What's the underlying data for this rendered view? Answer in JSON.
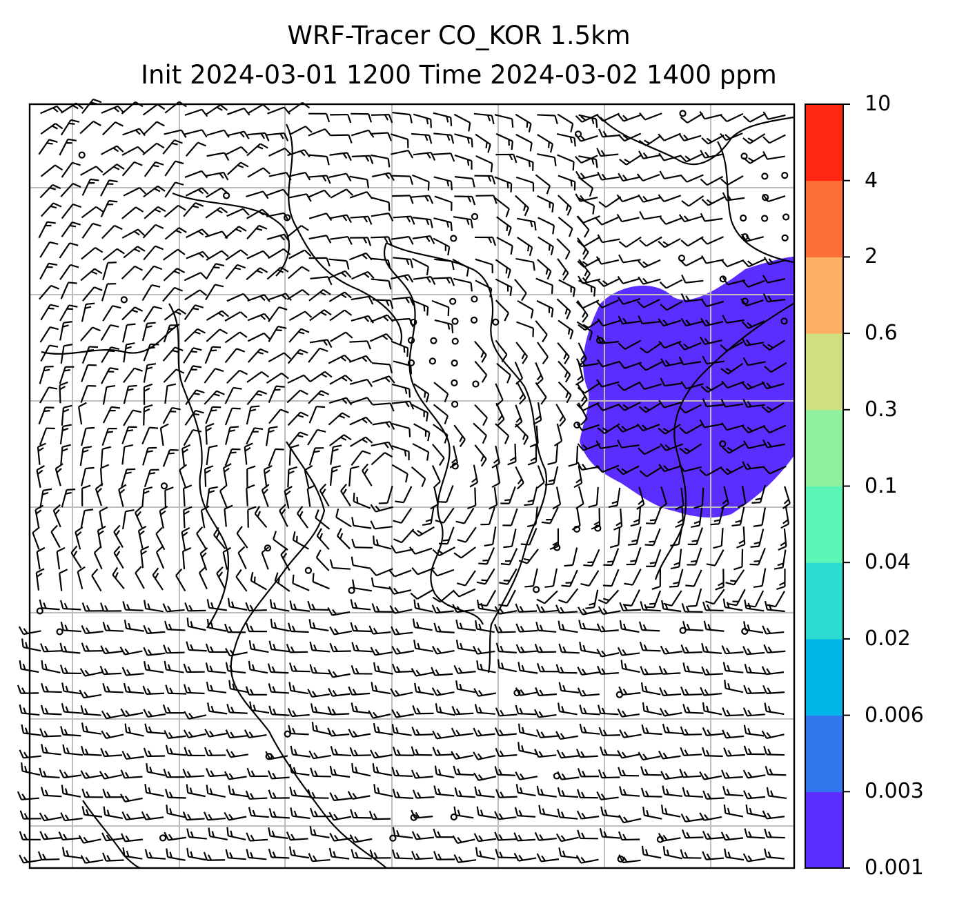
{
  "title": {
    "line1": "WRF-Tracer CO_KOR 1.5km",
    "line2": "Init 2024-03-01 1200 Time 2024-03-02 1400 ppm"
  },
  "colorbar": {
    "levels": [
      "0.001",
      "0.003",
      "0.006",
      "0.02",
      "0.04",
      "0.1",
      "0.3",
      "0.6",
      "2",
      "4",
      "10"
    ],
    "colors": [
      "#5b2dff",
      "#3377ee",
      "#00b4e8",
      "#2ddcd0",
      "#5cf5b8",
      "#8ef09c",
      "#cfe082",
      "#fcb066",
      "#ff7038",
      "#ff2812"
    ]
  },
  "map": {
    "wind_barbs": true,
    "calm_circles": true,
    "gridlines": true,
    "plume_color": "#5b2dff"
  }
}
